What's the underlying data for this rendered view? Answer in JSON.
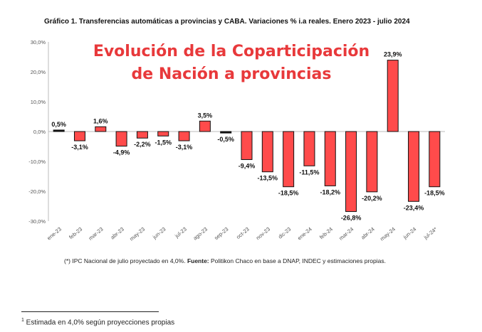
{
  "header": {
    "title": "Gráfico 1. Transferencias automáticas a provincias y CABA. Variaciones % i.a reales. Enero 2023 - julio 2024"
  },
  "overlay": {
    "line1": "Evolución de la Coparticipación",
    "line2": "de Nación a provincias",
    "color": "#e8393b"
  },
  "footnote": {
    "text1": "(*) IPC Nacional de julio proyectado en 4,0%. ",
    "label_bold": "Fuente:",
    "text2": " Politikon Chaco en base a DNAP, INDEC y estimaciones propias."
  },
  "bottom_note": {
    "mark": "1",
    "text": " Estimada en 4,0% según proyecciones propias"
  },
  "chart_data": {
    "type": "bar",
    "categories": [
      "ene-23",
      "feb-23",
      "mar-23",
      "abr-23",
      "may-23",
      "jun-23",
      "jul-23",
      "ago-23",
      "sep-23",
      "oct-23",
      "nov-23",
      "dic-23",
      "ene-24",
      "feb-24",
      "mar-24",
      "abr-24",
      "may-24",
      "jun-24",
      "jul-24*"
    ],
    "values": [
      0.5,
      -3.1,
      1.6,
      -4.9,
      -2.2,
      -1.5,
      -3.1,
      3.5,
      -0.5,
      -9.4,
      -13.5,
      -18.5,
      -11.5,
      -18.2,
      -26.8,
      -20.2,
      23.9,
      -23.4,
      -18.5
    ],
    "data_labels": [
      "0,5%",
      "-3,1%",
      "1,6%",
      "-4,9%",
      "-2,2%",
      "-1,5%",
      "-3,1%",
      "3,5%",
      "-0,5%",
      "-9,4%",
      "-13,5%",
      "-18,5%",
      "-11,5%",
      "-18,2%",
      "-26,8%",
      "-20,2%",
      "23,9%",
      "-23,4%",
      "-18,5%"
    ],
    "y_ticks": [
      30,
      20,
      10,
      0,
      -10,
      -20,
      -30
    ],
    "y_tick_labels": [
      "30,0%",
      "20,0%",
      "10,0%",
      "0,0%",
      "-10,0%",
      "-20,0%",
      "-30,0%"
    ],
    "ylim": [
      -30,
      30
    ],
    "grid": false,
    "colors": {
      "positive": "#ff4b4b",
      "negative": "#ff4b4b",
      "highlight": "#111111",
      "border": "#111111"
    }
  }
}
